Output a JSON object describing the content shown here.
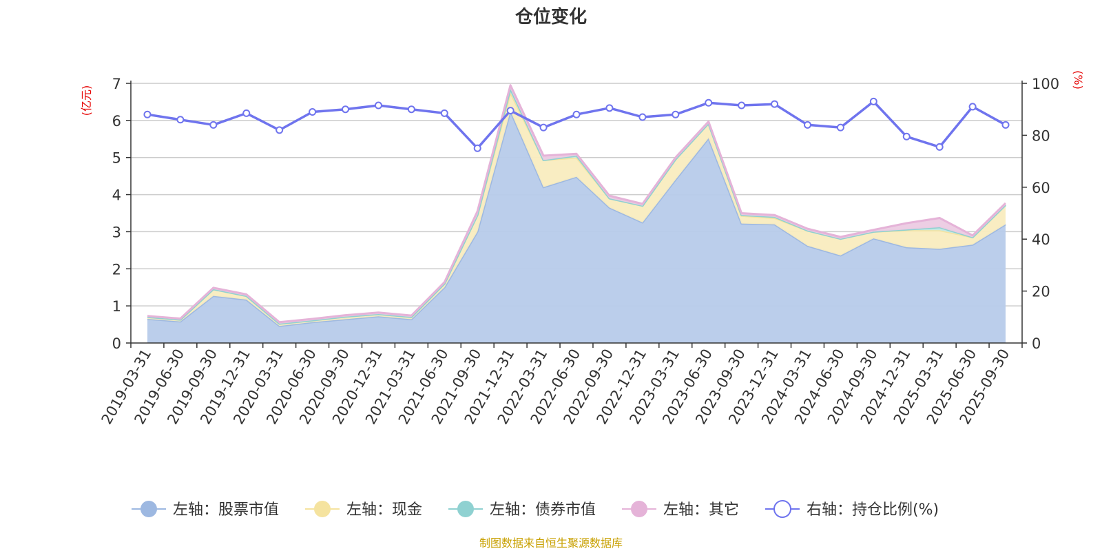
{
  "chart_data": {
    "type": "area",
    "title": "仓位变化",
    "left_axis_unit": "(亿元)",
    "right_axis_unit": "(%)",
    "left_ylim": [
      0,
      7
    ],
    "left_ticks": [
      "0",
      "1",
      "2",
      "3",
      "4",
      "5",
      "6",
      "7"
    ],
    "right_ylim": [
      0,
      100
    ],
    "right_ticks": [
      "0",
      "20",
      "40",
      "60",
      "80",
      "100"
    ],
    "grid": true,
    "legend_position": "bottom",
    "categories": [
      "2019-03-31",
      "2019-06-30",
      "2019-09-30",
      "2019-12-31",
      "2020-03-31",
      "2020-06-30",
      "2020-09-30",
      "2020-12-31",
      "2021-03-31",
      "2021-06-30",
      "2021-09-30",
      "2021-12-31",
      "2022-03-31",
      "2022-06-30",
      "2022-09-30",
      "2022-12-31",
      "2023-03-31",
      "2023-06-30",
      "2023-09-30",
      "2023-12-31",
      "2024-03-31",
      "2024-06-30",
      "2024-09-30",
      "2024-12-31",
      "2025-03-31",
      "2025-06-30",
      "2025-09-30"
    ],
    "series": [
      {
        "name": "左轴：股票市值",
        "axis": "left",
        "stack": true,
        "color": "#9db8e1",
        "fill": "#b7cbea",
        "values": [
          0.65,
          0.58,
          1.27,
          1.17,
          0.46,
          0.56,
          0.64,
          0.72,
          0.64,
          1.5,
          3.0,
          6.25,
          4.2,
          4.48,
          3.65,
          3.25,
          4.4,
          5.52,
          3.22,
          3.2,
          2.62,
          2.36,
          2.82,
          2.58,
          2.54,
          2.65,
          3.2
        ]
      },
      {
        "name": "左轴：现金",
        "axis": "left",
        "stack": true,
        "color": "#f5e39f",
        "fill": "#f9ecbf",
        "values": [
          0.05,
          0.05,
          0.18,
          0.1,
          0.06,
          0.05,
          0.07,
          0.06,
          0.06,
          0.1,
          0.45,
          0.5,
          0.73,
          0.52,
          0.25,
          0.45,
          0.55,
          0.4,
          0.21,
          0.17,
          0.41,
          0.45,
          0.18,
          0.46,
          0.5,
          0.2,
          0.52
        ]
      },
      {
        "name": "左轴：债券市值",
        "axis": "left",
        "stack": true,
        "color": "#8fd1d1",
        "fill": "#c4e8e4",
        "values": [
          0,
          0,
          0,
          0,
          0,
          0,
          0,
          0,
          0,
          0,
          0,
          0.1,
          0,
          0.05,
          0,
          0,
          0,
          0,
          0.02,
          0.03,
          0,
          0,
          0,
          0.02,
          0.08,
          0,
          0
        ]
      },
      {
        "name": "左轴：其它",
        "axis": "left",
        "stack": true,
        "color": "#e5b3d8",
        "fill": "#eccbe3",
        "values": [
          0.03,
          0.03,
          0.04,
          0.04,
          0.04,
          0.04,
          0.04,
          0.04,
          0.04,
          0.04,
          0.1,
          0.1,
          0.12,
          0.05,
          0.07,
          0.05,
          0.05,
          0.05,
          0.05,
          0.05,
          0.05,
          0.05,
          0.05,
          0.17,
          0.25,
          0.05,
          0.05
        ]
      },
      {
        "name": "右轴：持仓比例(%)",
        "axis": "right",
        "type": "line",
        "color": "#6f74ee",
        "values": [
          88,
          86,
          84,
          88.5,
          82,
          89,
          90,
          91.5,
          90,
          88.5,
          75,
          89.5,
          83,
          88,
          90.5,
          87,
          88,
          92.5,
          91.5,
          92,
          84,
          83,
          93,
          79.5,
          75.5,
          91,
          84
        ]
      }
    ]
  },
  "source_note": "制图数据来自恒生聚源数据库"
}
